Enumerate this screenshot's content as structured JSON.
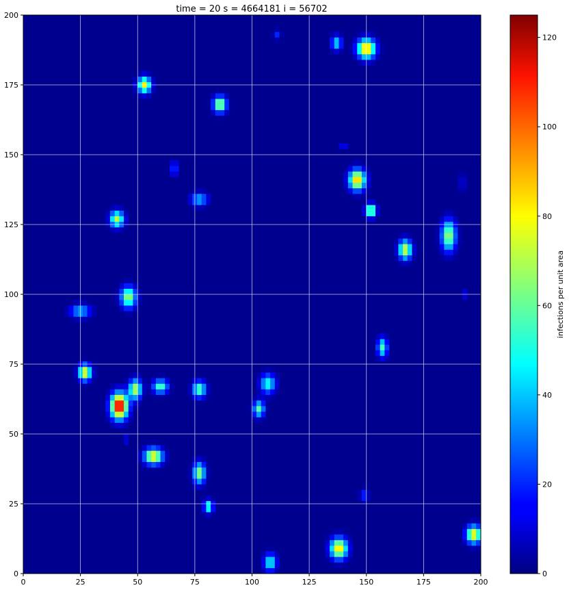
{
  "chart_data": {
    "type": "heatmap",
    "title": "time = 20  s = 4664181  i = 56702",
    "xlim": [
      0,
      200
    ],
    "ylim": [
      0,
      200
    ],
    "xticks": [
      0,
      25,
      50,
      75,
      100,
      125,
      150,
      175,
      200
    ],
    "yticks": [
      0,
      25,
      50,
      75,
      100,
      125,
      150,
      175,
      200
    ],
    "grid": true,
    "colormap": "jet",
    "colorbar": {
      "label": "infections per unit area",
      "range": [
        0,
        125
      ],
      "ticks": [
        0,
        20,
        40,
        60,
        80,
        100,
        120
      ]
    },
    "hotspots": [
      {
        "x": 42,
        "y": 60,
        "peak": 118,
        "sx": 2.6,
        "sy": 3.2
      },
      {
        "x": 150,
        "y": 188,
        "peak": 90,
        "sx": 2.8,
        "sy": 2.4
      },
      {
        "x": 146,
        "y": 141,
        "peak": 88,
        "sx": 2.5,
        "sy": 2.6
      },
      {
        "x": 57,
        "y": 42,
        "peak": 82,
        "sx": 2.8,
        "sy": 2.0
      },
      {
        "x": 138,
        "y": 9,
        "peak": 84,
        "sx": 2.6,
        "sy": 2.6
      },
      {
        "x": 27,
        "y": 72,
        "peak": 82,
        "sx": 1.9,
        "sy": 2.0
      },
      {
        "x": 53,
        "y": 175,
        "peak": 80,
        "sx": 2.0,
        "sy": 2.0
      },
      {
        "x": 197,
        "y": 14,
        "peak": 82,
        "sx": 2.3,
        "sy": 2.2
      },
      {
        "x": 86,
        "y": 168,
        "peak": 72,
        "sx": 2.0,
        "sy": 2.0
      },
      {
        "x": 167,
        "y": 116,
        "peak": 75,
        "sx": 2.0,
        "sy": 2.4
      },
      {
        "x": 152,
        "y": 130,
        "peak": 74,
        "sx": 1.6,
        "sy": 1.6
      },
      {
        "x": 49,
        "y": 66,
        "peak": 72,
        "sx": 1.9,
        "sy": 2.4
      },
      {
        "x": 186,
        "y": 121,
        "peak": 68,
        "sx": 2.2,
        "sy": 3.8
      },
      {
        "x": 46,
        "y": 99,
        "peak": 68,
        "sx": 2.3,
        "sy": 2.6
      },
      {
        "x": 41,
        "y": 127,
        "peak": 70,
        "sx": 2.1,
        "sy": 2.0
      },
      {
        "x": 77,
        "y": 36,
        "peak": 66,
        "sx": 1.8,
        "sy": 2.6
      },
      {
        "x": 103,
        "y": 59,
        "peak": 58,
        "sx": 1.7,
        "sy": 2.0
      },
      {
        "x": 107,
        "y": 68,
        "peak": 50,
        "sx": 2.3,
        "sy": 2.4
      },
      {
        "x": 60,
        "y": 67,
        "peak": 58,
        "sx": 2.3,
        "sy": 1.7
      },
      {
        "x": 77,
        "y": 66,
        "peak": 60,
        "sx": 2.0,
        "sy": 2.0
      },
      {
        "x": 157,
        "y": 81,
        "peak": 55,
        "sx": 1.5,
        "sy": 2.4
      },
      {
        "x": 81,
        "y": 24,
        "peak": 55,
        "sx": 1.4,
        "sy": 1.6
      },
      {
        "x": 108,
        "y": 4,
        "peak": 50,
        "sx": 1.9,
        "sy": 2.2
      },
      {
        "x": 25,
        "y": 94,
        "peak": 40,
        "sx": 3.2,
        "sy": 1.6
      },
      {
        "x": 77,
        "y": 134,
        "peak": 40,
        "sx": 2.6,
        "sy": 1.6
      },
      {
        "x": 137,
        "y": 190,
        "peak": 45,
        "sx": 1.6,
        "sy": 1.8
      },
      {
        "x": 66,
        "y": 145,
        "peak": 25,
        "sx": 1.2,
        "sy": 2.0
      },
      {
        "x": 111,
        "y": 193,
        "peak": 20,
        "sx": 1.2,
        "sy": 1.2
      },
      {
        "x": 140,
        "y": 153,
        "peak": 15,
        "sx": 1.4,
        "sy": 1.0
      },
      {
        "x": 192,
        "y": 140,
        "peak": 14,
        "sx": 1.0,
        "sy": 2.5
      },
      {
        "x": 193,
        "y": 100,
        "peak": 12,
        "sx": 1.0,
        "sy": 1.6
      },
      {
        "x": 149,
        "y": 28,
        "peak": 22,
        "sx": 1.3,
        "sy": 1.6
      },
      {
        "x": 45,
        "y": 48,
        "peak": 14,
        "sx": 1.0,
        "sy": 1.2
      }
    ]
  }
}
